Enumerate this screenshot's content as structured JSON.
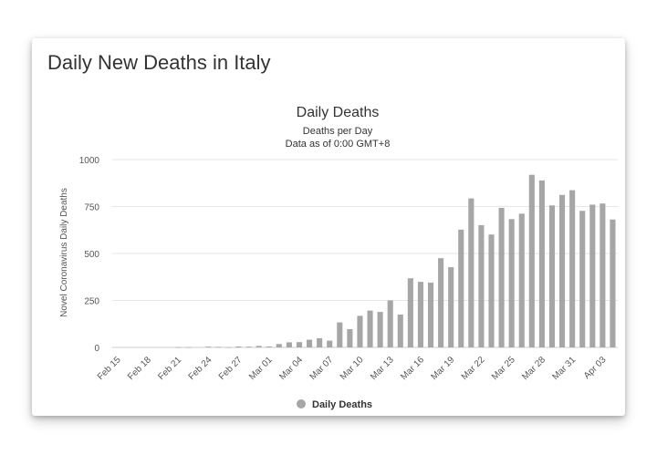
{
  "card": {
    "title": "Daily New Deaths in Italy"
  },
  "chart_data": {
    "type": "bar",
    "title": "Daily Deaths",
    "subtitle_lines": [
      "Deaths per Day",
      "Data as of 0:00 GMT+8"
    ],
    "xlabel": "",
    "ylabel": "Novel Coronavirus Daily Deaths",
    "ylim": [
      0,
      1000
    ],
    "yticks": [
      0,
      250,
      500,
      750,
      1000
    ],
    "grid": true,
    "legend": "bottom-center",
    "tick_labels": [
      "Feb 15",
      "Feb 18",
      "Feb 21",
      "Feb 24",
      "Feb 27",
      "Mar 01",
      "Mar 04",
      "Mar 07",
      "Mar 10",
      "Mar 13",
      "Mar 16",
      "Mar 19",
      "Mar 22",
      "Mar 25",
      "Mar 28",
      "Mar 31",
      "Apr 03"
    ],
    "categories": [
      "Feb 15",
      "Feb 16",
      "Feb 17",
      "Feb 18",
      "Feb 19",
      "Feb 20",
      "Feb 21",
      "Feb 22",
      "Feb 23",
      "Feb 24",
      "Feb 25",
      "Feb 26",
      "Feb 27",
      "Feb 28",
      "Feb 29",
      "Mar 01",
      "Mar 02",
      "Mar 03",
      "Mar 04",
      "Mar 05",
      "Mar 06",
      "Mar 07",
      "Mar 08",
      "Mar 09",
      "Mar 10",
      "Mar 11",
      "Mar 12",
      "Mar 13",
      "Mar 14",
      "Mar 15",
      "Mar 16",
      "Mar 17",
      "Mar 18",
      "Mar 19",
      "Mar 20",
      "Mar 21",
      "Mar 22",
      "Mar 23",
      "Mar 24",
      "Mar 25",
      "Mar 26",
      "Mar 27",
      "Mar 28",
      "Mar 29",
      "Mar 30",
      "Mar 31",
      "Apr 01",
      "Apr 02",
      "Apr 03",
      "Apr 04"
    ],
    "series": [
      {
        "name": "Daily Deaths",
        "color": "#a6a6a6",
        "values": [
          0,
          0,
          0,
          0,
          0,
          0,
          1,
          1,
          0,
          4,
          3,
          1,
          5,
          4,
          8,
          5,
          18,
          27,
          28,
          41,
          49,
          36,
          133,
          97,
          168,
          196,
          189,
          250,
          175,
          368,
          349,
          345,
          475,
          427,
          627,
          793,
          651,
          601,
          743,
          683,
          712,
          919,
          889,
          756,
          812,
          837,
          727,
          760,
          766,
          681
        ]
      }
    ]
  }
}
